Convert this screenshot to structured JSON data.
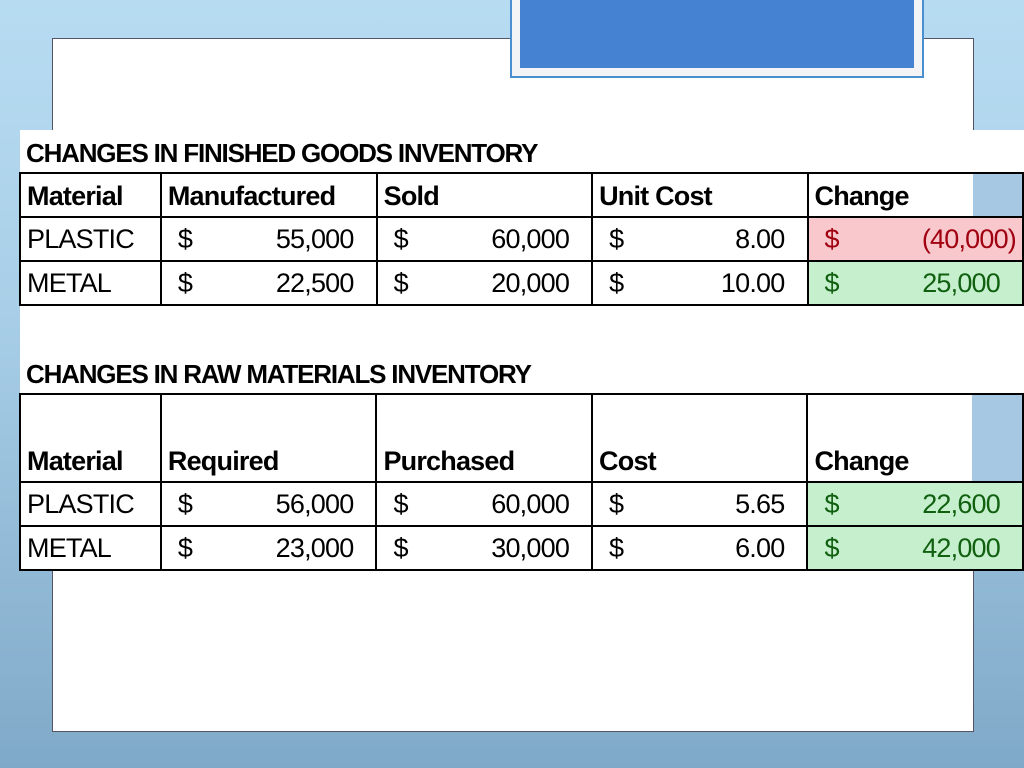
{
  "finished_goods": {
    "title": "CHANGES IN FINISHED GOODS INVENTORY",
    "headers": [
      "Material",
      "Manufactured",
      "Sold",
      "Unit Cost",
      "Change"
    ],
    "rows": [
      {
        "material": "PLASTIC",
        "manufactured": "55,000",
        "sold": "60,000",
        "unit_cost": "8.00",
        "change": "(40,000)",
        "status": "negative"
      },
      {
        "material": "METAL",
        "manufactured": "22,500",
        "sold": "20,000",
        "unit_cost": "10.00",
        "change": "25,000",
        "status": "positive"
      }
    ]
  },
  "raw_materials": {
    "title": "CHANGES IN RAW MATERIALS INVENTORY",
    "headers": [
      "Material",
      "Required",
      "Purchased",
      "Cost",
      "Change"
    ],
    "rows": [
      {
        "material": "PLASTIC",
        "required": "56,000",
        "purchased": "60,000",
        "cost": "5.65",
        "change": "22,600",
        "status": "positive"
      },
      {
        "material": "METAL",
        "required": "23,000",
        "purchased": "30,000",
        "cost": "6.00",
        "change": "42,000",
        "status": "positive"
      }
    ]
  },
  "currency_symbol": "$",
  "colors": {
    "negative_bg": "#f8c8cc",
    "negative_text": "#a00010",
    "positive_bg": "#c6efce",
    "positive_text": "#106010",
    "accent": "#4682d2"
  }
}
